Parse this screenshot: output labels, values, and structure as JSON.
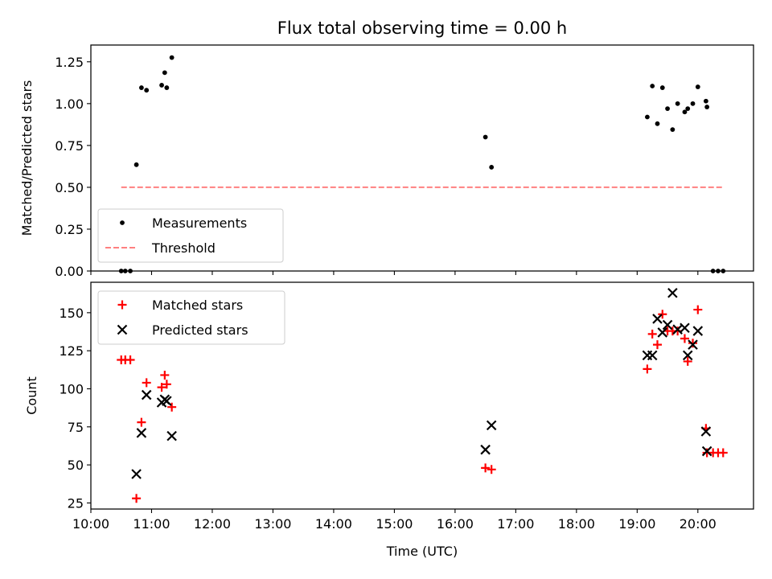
{
  "chart_data": [
    {
      "type": "scatter",
      "title": "Flux total observing time = 0.00 h",
      "xlabel": "",
      "ylabel": "Matched/Predicted stars",
      "xlim": [
        "10:00",
        "20:55"
      ],
      "ylim": [
        0,
        1.35
      ],
      "yticks": [
        "0.00",
        "0.25",
        "0.50",
        "0.75",
        "1.00",
        "1.25"
      ],
      "grid": false,
      "legend_position": "lower-left",
      "series": [
        {
          "name": "Measurements",
          "marker": "dot",
          "color": "#000000",
          "points": [
            [
              "10:30",
              0.0
            ],
            [
              "10:34",
              0.0
            ],
            [
              "10:39",
              0.0
            ],
            [
              "10:45",
              0.635
            ],
            [
              "10:50",
              1.095
            ],
            [
              "10:55",
              1.08
            ],
            [
              "11:10",
              1.11
            ],
            [
              "11:13",
              1.185
            ],
            [
              "11:15",
              1.095
            ],
            [
              "11:20",
              1.275
            ],
            [
              "16:30",
              0.8
            ],
            [
              "16:36",
              0.62
            ],
            [
              "19:10",
              0.92
            ],
            [
              "19:15",
              1.105
            ],
            [
              "19:20",
              0.88
            ],
            [
              "19:25",
              1.095
            ],
            [
              "19:30",
              0.97
            ],
            [
              "19:35",
              0.845
            ],
            [
              "19:40",
              1.0
            ],
            [
              "19:47",
              0.95
            ],
            [
              "19:50",
              0.97
            ],
            [
              "19:55",
              1.0
            ],
            [
              "20:00",
              1.1
            ],
            [
              "20:08",
              1.015
            ],
            [
              "20:09",
              0.98
            ],
            [
              "20:15",
              0.0
            ],
            [
              "20:20",
              0.0
            ],
            [
              "20:25",
              0.0
            ]
          ]
        },
        {
          "name": "Threshold",
          "type": "line",
          "style": "dashed",
          "color": "#ff8080",
          "points": [
            [
              "10:30",
              0.5
            ],
            [
              "20:25",
              0.5
            ]
          ]
        }
      ]
    },
    {
      "type": "scatter",
      "title": "",
      "xlabel": "Time (UTC)",
      "ylabel": "Count",
      "xlim": [
        "10:00",
        "20:55"
      ],
      "ylim": [
        21,
        170
      ],
      "xticks": [
        "10:00",
        "11:00",
        "12:00",
        "13:00",
        "14:00",
        "15:00",
        "16:00",
        "17:00",
        "18:00",
        "19:00",
        "20:00"
      ],
      "yticks": [
        "25",
        "50",
        "75",
        "100",
        "125",
        "150"
      ],
      "grid": false,
      "legend_position": "top-left",
      "series": [
        {
          "name": "Matched stars",
          "marker": "plus",
          "color": "#ff0000",
          "points": [
            [
              "10:30",
              119
            ],
            [
              "10:34",
              119
            ],
            [
              "10:39",
              119
            ],
            [
              "10:45",
              28
            ],
            [
              "10:50",
              78
            ],
            [
              "10:55",
              104
            ],
            [
              "11:10",
              101
            ],
            [
              "11:13",
              109
            ],
            [
              "11:15",
              103
            ],
            [
              "11:20",
              88
            ],
            [
              "16:30",
              48
            ],
            [
              "16:36",
              47
            ],
            [
              "19:10",
              113
            ],
            [
              "19:15",
              136
            ],
            [
              "19:20",
              129
            ],
            [
              "19:25",
              149
            ],
            [
              "19:30",
              138
            ],
            [
              "19:35",
              138
            ],
            [
              "19:40",
              138
            ],
            [
              "19:47",
              133
            ],
            [
              "19:50",
              118
            ],
            [
              "19:55",
              130
            ],
            [
              "20:00",
              152
            ],
            [
              "20:08",
              74
            ],
            [
              "20:09",
              58
            ],
            [
              "20:15",
              58
            ],
            [
              "20:20",
              58
            ],
            [
              "20:25",
              58
            ]
          ]
        },
        {
          "name": "Predicted stars",
          "marker": "x",
          "color": "#000000",
          "points": [
            [
              "10:45",
              44
            ],
            [
              "10:50",
              71
            ],
            [
              "10:55",
              96
            ],
            [
              "11:10",
              91
            ],
            [
              "11:13",
              93
            ],
            [
              "11:15",
              92
            ],
            [
              "11:20",
              69
            ],
            [
              "16:30",
              60
            ],
            [
              "16:36",
              76
            ],
            [
              "19:10",
              122
            ],
            [
              "19:15",
              122
            ],
            [
              "19:20",
              146
            ],
            [
              "19:25",
              137
            ],
            [
              "19:30",
              142
            ],
            [
              "19:35",
              163
            ],
            [
              "19:40",
              139
            ],
            [
              "19:47",
              140
            ],
            [
              "19:50",
              122
            ],
            [
              "19:55",
              129
            ],
            [
              "20:00",
              138
            ],
            [
              "20:08",
              72
            ],
            [
              "20:09",
              59
            ]
          ]
        }
      ]
    }
  ]
}
